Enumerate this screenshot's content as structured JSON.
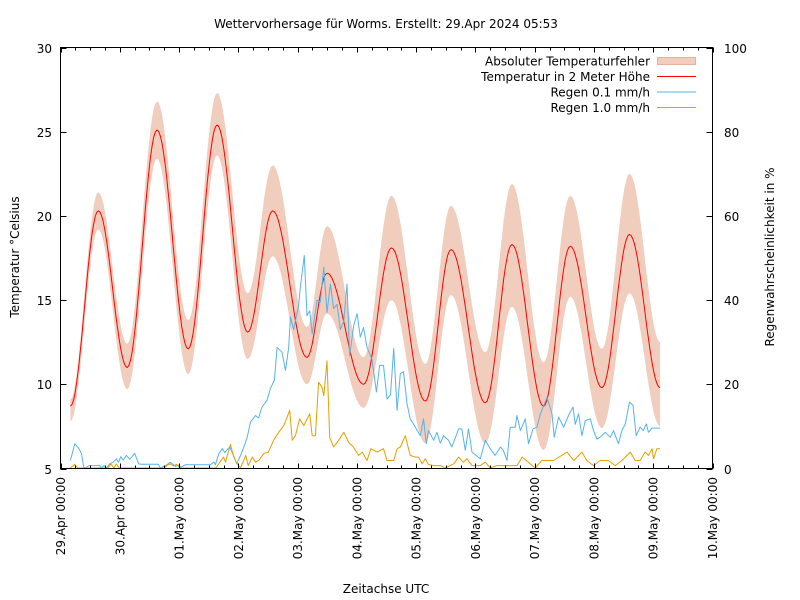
{
  "chart_data": {
    "type": "line",
    "title": "Wettervorhersage für Worms. Erstellt: 29.Apr 2024 05:53",
    "xlabel": "Zeitachse UTC",
    "ylabel": "Temperatur °Celsius",
    "y2label": "Regenwahrscheinlichkeit in %",
    "x_unit": "hours since 29.Apr 00:00 UTC",
    "x_range": [
      0,
      264
    ],
    "x_major_tick_step_hours": 24,
    "x_minor_tick_step_hours": 6,
    "x_tick_labels": [
      "29.Apr 00:00",
      "30.Apr 00:00",
      "01.May 00:00",
      "02.May 00:00",
      "03.May 00:00",
      "04.May 00:00",
      "05.May 00:00",
      "06.May 00:00",
      "07.May 00:00",
      "08.May 00:00",
      "09.May 00:00",
      "10.May 00:00"
    ],
    "y_left_range": [
      5,
      30
    ],
    "y_left_ticks": [
      "5",
      "10",
      "15",
      "20",
      "25",
      "30"
    ],
    "y_right_range": [
      0,
      100
    ],
    "y_right_ticks": [
      "0",
      "20",
      "40",
      "60",
      "80",
      "100"
    ],
    "grid": false,
    "legend_position": "top-right",
    "series": [
      {
        "name": "Absoluter Temperaturfehler",
        "kind": "band",
        "axis": "left",
        "color": "#f0cdbd",
        "border_color": "#e2b39f",
        "points_hour_low_high": [
          [
            4.0,
            7.8,
            9.1
          ],
          [
            15.3,
            19.2,
            21.4
          ],
          [
            27.0,
            9.7,
            12.4
          ],
          [
            39.1,
            23.4,
            26.8
          ],
          [
            51.7,
            10.6,
            13.8
          ],
          [
            63.4,
            23.6,
            27.3
          ],
          [
            75.8,
            11.5,
            15.4
          ],
          [
            85.9,
            17.6,
            23.0
          ],
          [
            99.8,
            10.0,
            13.4
          ],
          [
            107.9,
            14.2,
            19.4
          ],
          [
            122.7,
            8.6,
            11.6
          ],
          [
            134.0,
            15.0,
            21.2
          ],
          [
            147.7,
            6.5,
            11.2
          ],
          [
            158.1,
            15.3,
            20.6
          ],
          [
            172.0,
            6.5,
            11.9
          ],
          [
            182.8,
            14.6,
            21.9
          ],
          [
            195.6,
            6.1,
            11.3
          ],
          [
            206.4,
            15.2,
            21.2
          ],
          [
            219.2,
            7.4,
            12.1
          ],
          [
            230.4,
            15.4,
            22.5
          ],
          [
            242.8,
            7.5,
            12.5
          ]
        ]
      },
      {
        "name": "Temperatur in 2 Meter Höhe",
        "kind": "line",
        "axis": "left",
        "color": "#ff0000",
        "points_hour_value": [
          [
            4.0,
            8.7
          ],
          [
            15.3,
            20.3
          ],
          [
            27.0,
            11.0
          ],
          [
            39.1,
            25.1
          ],
          [
            51.7,
            12.1
          ],
          [
            63.4,
            25.4
          ],
          [
            75.8,
            13.1
          ],
          [
            85.9,
            20.3
          ],
          [
            99.8,
            11.6
          ],
          [
            107.9,
            16.6
          ],
          [
            122.7,
            10.0
          ],
          [
            134.0,
            18.1
          ],
          [
            147.7,
            9.0
          ],
          [
            158.1,
            18.0
          ],
          [
            172.0,
            8.9
          ],
          [
            182.8,
            18.3
          ],
          [
            195.6,
            8.7
          ],
          [
            206.4,
            18.2
          ],
          [
            219.2,
            9.8
          ],
          [
            230.4,
            18.9
          ],
          [
            242.8,
            9.8
          ]
        ]
      },
      {
        "name": "Regen 0.1 mm/h",
        "kind": "line",
        "axis": "right",
        "color": "#56b4e9",
        "points_hour_value": [
          [
            4.0,
            1.9
          ],
          [
            5.8,
            5.9
          ],
          [
            7.5,
            4.7
          ],
          [
            8.5,
            3.5
          ],
          [
            9.4,
            0.3
          ],
          [
            10.1,
            0
          ],
          [
            11.5,
            0.7
          ],
          [
            15.9,
            0.7
          ],
          [
            16.3,
            0
          ],
          [
            17.6,
            0.7
          ],
          [
            18.6,
            0
          ],
          [
            19.9,
            1.1
          ],
          [
            21.3,
            1.5
          ],
          [
            22.6,
            2.3
          ],
          [
            23.5,
            1.5
          ],
          [
            24.4,
            2.8
          ],
          [
            25.4,
            2.0
          ],
          [
            26.7,
            3.1
          ],
          [
            28.0,
            2.2
          ],
          [
            29.0,
            2.8
          ],
          [
            30.0,
            3.6
          ],
          [
            31.7,
            1.1
          ],
          [
            32.8,
            1.0
          ],
          [
            39.5,
            1.0
          ],
          [
            40.5,
            0
          ],
          [
            42.5,
            0.7
          ],
          [
            44.5,
            1.5
          ],
          [
            45.5,
            1.0
          ],
          [
            46.5,
            0.5
          ],
          [
            47.8,
            0.8
          ],
          [
            48.8,
            0.3
          ],
          [
            50.6,
            0.9
          ],
          [
            60.7,
            0.9
          ],
          [
            62.1,
            1.5
          ],
          [
            62.7,
            0.9
          ],
          [
            64.1,
            3.5
          ],
          [
            65.5,
            4.7
          ],
          [
            66.5,
            3.8
          ],
          [
            68.5,
            5.1
          ],
          [
            69.4,
            4.0
          ],
          [
            71.4,
            1.1
          ],
          [
            73.5,
            3.9
          ],
          [
            75.6,
            7.4
          ],
          [
            76.9,
            11.0
          ],
          [
            78.9,
            12.6
          ],
          [
            80.2,
            12.0
          ],
          [
            81.6,
            14.6
          ],
          [
            83.6,
            16.2
          ],
          [
            85.0,
            19.0
          ],
          [
            86.6,
            21.0
          ],
          [
            87.7,
            28.8
          ],
          [
            89.7,
            27.6
          ],
          [
            91.1,
            23.3
          ],
          [
            92.4,
            28.8
          ],
          [
            93.1,
            36.0
          ],
          [
            94.4,
            33.0
          ],
          [
            96.4,
            38.7
          ],
          [
            97.1,
            43.0
          ],
          [
            98.7,
            50.6
          ],
          [
            99.8,
            36.3
          ],
          [
            100.9,
            37.5
          ],
          [
            101.9,
            32.0
          ],
          [
            103.9,
            40.0
          ],
          [
            105.2,
            39.5
          ],
          [
            106.6,
            47.8
          ],
          [
            107.9,
            37.1
          ],
          [
            109.3,
            43.8
          ],
          [
            110.6,
            38.0
          ],
          [
            112.0,
            39.0
          ],
          [
            113.3,
            33.0
          ],
          [
            114.7,
            35.0
          ],
          [
            116.0,
            43.8
          ],
          [
            117.1,
            26.8
          ],
          [
            118.7,
            34.0
          ],
          [
            120.1,
            36.8
          ],
          [
            121.4,
            31.2
          ],
          [
            122.7,
            33.5
          ],
          [
            124.1,
            28.8
          ],
          [
            126.1,
            26.0
          ],
          [
            127.9,
            18.2
          ],
          [
            129.2,
            24.5
          ],
          [
            130.8,
            24.5
          ],
          [
            132.2,
            16.5
          ],
          [
            133.6,
            17.5
          ],
          [
            134.9,
            28.5
          ],
          [
            136.3,
            13.8
          ],
          [
            137.6,
            22.5
          ],
          [
            138.9,
            23.0
          ],
          [
            140.3,
            15.4
          ],
          [
            141.6,
            11.8
          ],
          [
            143.7,
            9.8
          ],
          [
            145.7,
            7.8
          ],
          [
            147.0,
            11.8
          ],
          [
            148.1,
            5.9
          ],
          [
            149.0,
            9.0
          ],
          [
            151.1,
            6.7
          ],
          [
            152.4,
            8.6
          ],
          [
            153.8,
            6.0
          ],
          [
            155.1,
            7.8
          ],
          [
            157.1,
            6.7
          ],
          [
            158.5,
            5.1
          ],
          [
            161.2,
            9.4
          ],
          [
            162.5,
            9.4
          ],
          [
            163.9,
            4.3
          ],
          [
            165.2,
            9.4
          ],
          [
            166.6,
            3.9
          ],
          [
            170.0,
            2.3
          ],
          [
            172.0,
            6.7
          ],
          [
            174.0,
            4.7
          ],
          [
            176.0,
            3.1
          ],
          [
            178.1,
            5.1
          ],
          [
            179.3,
            4.3
          ],
          [
            180.8,
            1.9
          ],
          [
            182.1,
            9.8
          ],
          [
            184.1,
            9.8
          ],
          [
            184.8,
            12.6
          ],
          [
            186.2,
            9.0
          ],
          [
            188.2,
            11.8
          ],
          [
            189.5,
            5.9
          ],
          [
            191.3,
            9.4
          ],
          [
            192.9,
            9.8
          ],
          [
            194.3,
            13.0
          ],
          [
            197.0,
            16.9
          ],
          [
            199.0,
            13.0
          ],
          [
            199.9,
            7.4
          ],
          [
            201.7,
            12.2
          ],
          [
            203.7,
            9.8
          ],
          [
            205.7,
            12.6
          ],
          [
            207.5,
            14.6
          ],
          [
            208.4,
            10.5
          ],
          [
            209.8,
            13.0
          ],
          [
            211.1,
            7.8
          ],
          [
            212.5,
            11.4
          ],
          [
            214.5,
            11.8
          ],
          [
            215.8,
            9.0
          ],
          [
            217.2,
            7.0
          ],
          [
            218.5,
            7.4
          ],
          [
            220.6,
            8.6
          ],
          [
            222.6,
            7.4
          ],
          [
            223.9,
            9.0
          ],
          [
            225.9,
            5.9
          ],
          [
            227.3,
            9.0
          ],
          [
            228.7,
            10.6
          ],
          [
            230.4,
            15.8
          ],
          [
            231.8,
            15.0
          ],
          [
            233.1,
            7.8
          ],
          [
            234.7,
            9.8
          ],
          [
            236.0,
            9.0
          ],
          [
            237.2,
            10.6
          ],
          [
            238.1,
            8.6
          ],
          [
            239.5,
            9.6
          ],
          [
            242.8,
            9.6
          ]
        ]
      },
      {
        "name": "Regen 1.0 mm/h",
        "kind": "line",
        "axis": "right",
        "color": "#e69f00",
        "points_hour_value": [
          [
            4.0,
            0
          ],
          [
            5.7,
            1.0
          ],
          [
            6.9,
            0
          ],
          [
            19.2,
            0
          ],
          [
            20.4,
            1.1
          ],
          [
            21.6,
            0
          ],
          [
            22.6,
            1.1
          ],
          [
            23.8,
            0
          ],
          [
            42.0,
            0
          ],
          [
            43.3,
            0.8
          ],
          [
            44.5,
            1.1
          ],
          [
            45.7,
            0.6
          ],
          [
            47.0,
            1.0
          ],
          [
            48.3,
            0
          ],
          [
            62.9,
            0
          ],
          [
            66.0,
            2.7
          ],
          [
            66.8,
            1.5
          ],
          [
            68.8,
            5.7
          ],
          [
            69.8,
            3.5
          ],
          [
            71.1,
            1.5
          ],
          [
            72.9,
            0
          ],
          [
            75.0,
            3.1
          ],
          [
            76.0,
            0.7
          ],
          [
            77.7,
            2.7
          ],
          [
            79.0,
            1.5
          ],
          [
            80.4,
            2.0
          ],
          [
            82.4,
            3.6
          ],
          [
            84.2,
            3.9
          ],
          [
            86.3,
            6.7
          ],
          [
            88.3,
            8.6
          ],
          [
            90.4,
            10.2
          ],
          [
            92.8,
            13.8
          ],
          [
            93.8,
            6.7
          ],
          [
            95.1,
            7.8
          ],
          [
            96.8,
            11.8
          ],
          [
            98.5,
            10.2
          ],
          [
            100.9,
            13.0
          ],
          [
            101.9,
            7.8
          ],
          [
            103.2,
            7.8
          ],
          [
            104.5,
            20.5
          ],
          [
            105.9,
            19.3
          ],
          [
            106.6,
            17.3
          ],
          [
            107.9,
            25.6
          ],
          [
            109.0,
            7.4
          ],
          [
            110.6,
            5.1
          ],
          [
            112.6,
            6.7
          ],
          [
            114.7,
            8.6
          ],
          [
            116.7,
            6.2
          ],
          [
            118.6,
            5.1
          ],
          [
            120.7,
            3.1
          ],
          [
            122.2,
            3.9
          ],
          [
            124.1,
            1.9
          ],
          [
            125.7,
            4.7
          ],
          [
            128.2,
            3.9
          ],
          [
            130.8,
            4.7
          ],
          [
            132.2,
            1.9
          ],
          [
            134.9,
            1.9
          ],
          [
            136.3,
            4.7
          ],
          [
            137.6,
            5.1
          ],
          [
            139.6,
            7.8
          ],
          [
            141.6,
            3.1
          ],
          [
            143.7,
            2.7
          ],
          [
            145.0,
            2.7
          ],
          [
            146.4,
            1.1
          ],
          [
            147.7,
            2.3
          ],
          [
            148.9,
            1.0
          ],
          [
            151.1,
            0.7
          ],
          [
            153.8,
            0.7
          ],
          [
            155.8,
            0
          ],
          [
            159.2,
            1.1
          ],
          [
            161.2,
            2.7
          ],
          [
            163.1,
            1.5
          ],
          [
            164.6,
            2.3
          ],
          [
            166.6,
            0.7
          ],
          [
            170.0,
            0.7
          ],
          [
            172.0,
            1.5
          ],
          [
            174.0,
            0
          ],
          [
            176.7,
            0.7
          ],
          [
            184.8,
            0.7
          ],
          [
            186.9,
            2.7
          ],
          [
            189.5,
            1.5
          ],
          [
            192.2,
            0
          ],
          [
            194.9,
            1.9
          ],
          [
            199.6,
            1.9
          ],
          [
            205.1,
            3.9
          ],
          [
            207.8,
            1.9
          ],
          [
            211.1,
            3.9
          ],
          [
            213.1,
            1.9
          ],
          [
            215.8,
            0.7
          ],
          [
            218.5,
            1.9
          ],
          [
            221.8,
            1.9
          ],
          [
            224.6,
            0.7
          ],
          [
            227.3,
            1.9
          ],
          [
            230.7,
            3.9
          ],
          [
            232.7,
            1.9
          ],
          [
            234.7,
            1.9
          ],
          [
            236.7,
            3.9
          ],
          [
            238.1,
            3.1
          ],
          [
            239.5,
            4.7
          ],
          [
            240.1,
            2.3
          ],
          [
            241.5,
            4.7
          ],
          [
            242.8,
            4.7
          ]
        ]
      }
    ]
  }
}
